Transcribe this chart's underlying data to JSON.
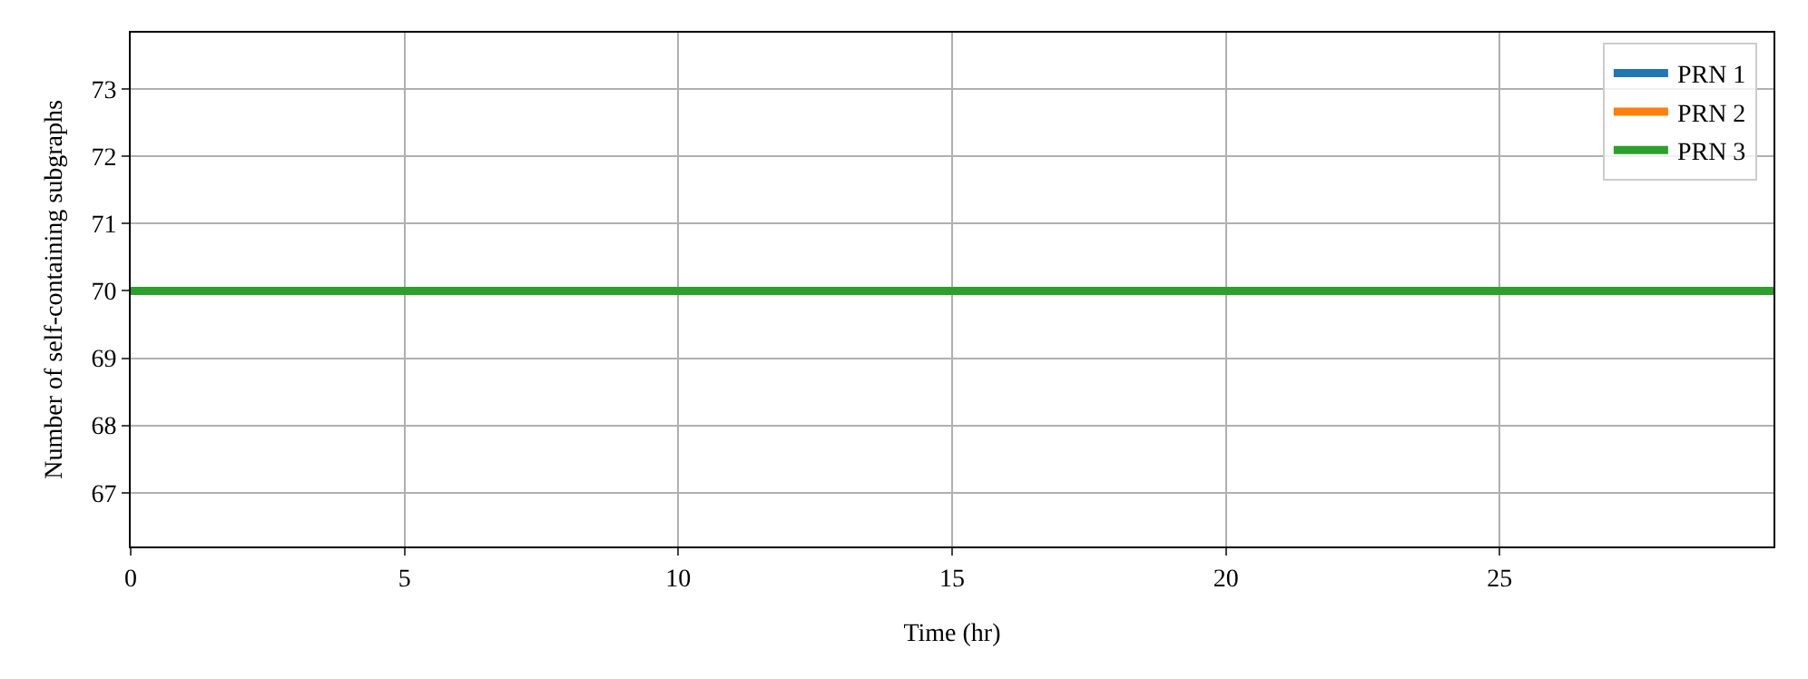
{
  "chart_data": {
    "type": "line",
    "xlabel": "Time (hr)",
    "ylabel": "Number of self-containing subgraphs",
    "x": [
      0,
      30
    ],
    "series": [
      {
        "name": "PRN 1",
        "color": "#1f77b4",
        "values": [
          null,
          null
        ]
      },
      {
        "name": "PRN 2",
        "color": "#ff7f0e",
        "values": [
          null,
          null
        ]
      },
      {
        "name": "PRN 3",
        "color": "#2ca02c",
        "values": [
          70,
          70
        ]
      }
    ],
    "xlim": [
      0,
      30
    ],
    "xticks": [
      0,
      5,
      10,
      15,
      20,
      25
    ],
    "ylim": [
      66.2,
      73.84
    ],
    "yticks": [
      67,
      68,
      69,
      70,
      71,
      72,
      73
    ],
    "grid": true,
    "legend": "top right",
    "marker": "none",
    "line_style": "solid"
  }
}
